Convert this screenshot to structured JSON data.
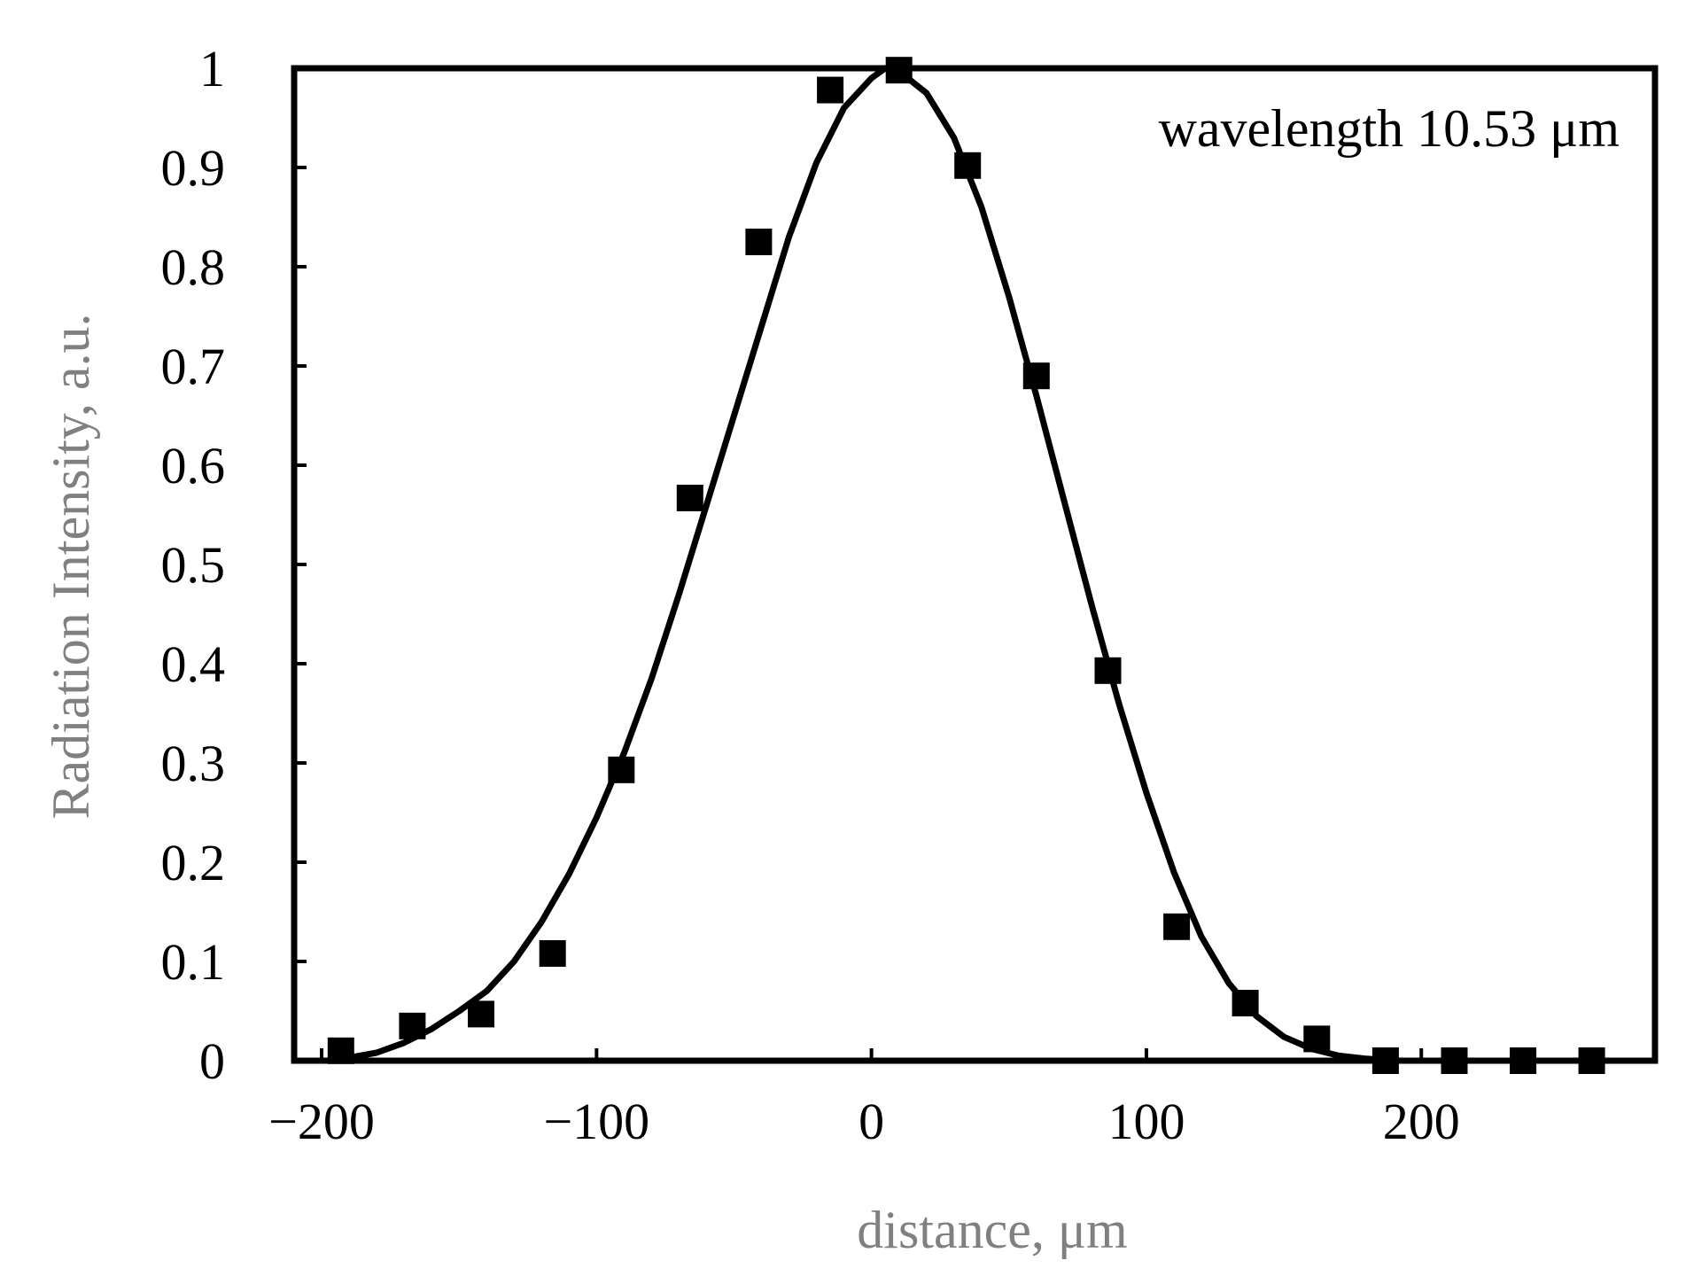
{
  "chart_data": {
    "type": "scatter",
    "xlabel": "distance, μm",
    "ylabel": "Radiation Intensity,  a.u.",
    "annotation": "wavelength  10.53  μm",
    "xlim": [
      -210,
      285
    ],
    "ylim": [
      0,
      1
    ],
    "x_ticks": [
      -200,
      -100,
      0,
      100,
      200
    ],
    "x_tick_labels": [
      "−200",
      "−100",
      "0",
      "100",
      "200"
    ],
    "y_ticks": [
      0,
      0.1,
      0.2,
      0.3,
      0.4,
      0.5,
      0.6,
      0.7,
      0.8,
      0.9,
      1
    ],
    "y_tick_labels": [
      "0",
      "0.1",
      "0.2",
      "0.3",
      "0.4",
      "0.5",
      "0.6",
      "0.7",
      "0.8",
      "0.9",
      "1"
    ],
    "grid": false,
    "legend": "none",
    "series": [
      {
        "kind": "markers",
        "marker": "square",
        "color": "#000000",
        "points": [
          {
            "x": -193,
            "y": 0.01
          },
          {
            "x": -167,
            "y": 0.035
          },
          {
            "x": -142,
            "y": 0.047
          },
          {
            "x": -116,
            "y": 0.108
          },
          {
            "x": -91,
            "y": 0.293
          },
          {
            "x": -66,
            "y": 0.567
          },
          {
            "x": -41,
            "y": 0.825
          },
          {
            "x": -15,
            "y": 0.978
          },
          {
            "x": 10,
            "y": 0.998
          },
          {
            "x": 35,
            "y": 0.902
          },
          {
            "x": 60,
            "y": 0.69
          },
          {
            "x": 86,
            "y": 0.393
          },
          {
            "x": 111,
            "y": 0.135
          },
          {
            "x": 136,
            "y": 0.058
          },
          {
            "x": 162,
            "y": 0.022
          },
          {
            "x": 187,
            "y": 0
          },
          {
            "x": 212,
            "y": 0
          },
          {
            "x": 237,
            "y": 0
          },
          {
            "x": 262,
            "y": 0
          }
        ]
      },
      {
        "kind": "line",
        "color": "#000000",
        "points": [
          {
            "x": -190,
            "y": 0.003
          },
          {
            "x": -180,
            "y": 0.008
          },
          {
            "x": -170,
            "y": 0.018
          },
          {
            "x": -160,
            "y": 0.032
          },
          {
            "x": -150,
            "y": 0.05
          },
          {
            "x": -140,
            "y": 0.07
          },
          {
            "x": -130,
            "y": 0.1
          },
          {
            "x": -120,
            "y": 0.14
          },
          {
            "x": -110,
            "y": 0.188
          },
          {
            "x": -100,
            "y": 0.245
          },
          {
            "x": -90,
            "y": 0.31
          },
          {
            "x": -80,
            "y": 0.385
          },
          {
            "x": -70,
            "y": 0.47
          },
          {
            "x": -60,
            "y": 0.56
          },
          {
            "x": -50,
            "y": 0.65
          },
          {
            "x": -40,
            "y": 0.74
          },
          {
            "x": -30,
            "y": 0.83
          },
          {
            "x": -20,
            "y": 0.905
          },
          {
            "x": -10,
            "y": 0.96
          },
          {
            "x": 0,
            "y": 0.99
          },
          {
            "x": 5,
            "y": 1.0
          },
          {
            "x": 10,
            "y": 0.997
          },
          {
            "x": 20,
            "y": 0.975
          },
          {
            "x": 30,
            "y": 0.93
          },
          {
            "x": 40,
            "y": 0.86
          },
          {
            "x": 50,
            "y": 0.77
          },
          {
            "x": 60,
            "y": 0.67
          },
          {
            "x": 70,
            "y": 0.565
          },
          {
            "x": 80,
            "y": 0.46
          },
          {
            "x": 90,
            "y": 0.36
          },
          {
            "x": 100,
            "y": 0.27
          },
          {
            "x": 110,
            "y": 0.19
          },
          {
            "x": 120,
            "y": 0.125
          },
          {
            "x": 130,
            "y": 0.078
          },
          {
            "x": 140,
            "y": 0.045
          },
          {
            "x": 150,
            "y": 0.024
          },
          {
            "x": 160,
            "y": 0.012
          },
          {
            "x": 170,
            "y": 0.005
          },
          {
            "x": 180,
            "y": 0.002
          },
          {
            "x": 190,
            "y": 0.0
          },
          {
            "x": 200,
            "y": 0.0
          }
        ]
      }
    ]
  }
}
